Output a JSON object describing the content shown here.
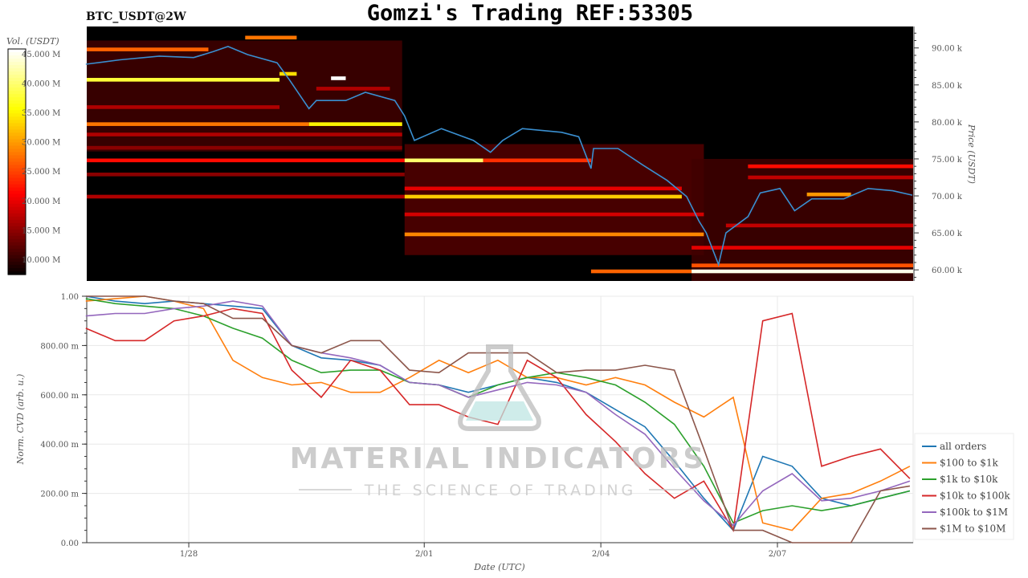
{
  "header": {
    "symbol": "BTC_USDT@2W",
    "title": "Gomzi's Trading REF:53305"
  },
  "watermark": {
    "brand": "MATERIAL INDICATORS",
    "tagline": "THE SCIENCE OF TRADING"
  },
  "chart_data": [
    {
      "type": "heatmap",
      "name_hint": "order book liquidity heatmap with price line",
      "x_range": [
        "01-26 06:24",
        "02-09 07:20"
      ],
      "y_range": [
        58.5,
        92.9
      ],
      "ylabel": "Price (USDT)",
      "y_ticks": [
        {
          "value": 60,
          "label": "60.00 k"
        },
        {
          "value": 65,
          "label": "65.00 k"
        },
        {
          "value": 70,
          "label": "70.00 k"
        },
        {
          "value": 75,
          "label": "75.00 k"
        },
        {
          "value": 80,
          "label": "80.00 k"
        },
        {
          "value": 85,
          "label": "85.00 k"
        },
        {
          "value": 90,
          "label": "90.00 k"
        }
      ],
      "colorbar": {
        "label": "Vol. (USDT)",
        "range": [
          7.4,
          45.8
        ],
        "colormap": "hot",
        "ticks": [
          {
            "value": 10,
            "label": "10.000 M"
          },
          {
            "value": 15,
            "label": "15.000 M"
          },
          {
            "value": 20,
            "label": "20.000 M"
          },
          {
            "value": 25,
            "label": "25.000 M"
          },
          {
            "value": 30,
            "label": "30.000 M"
          },
          {
            "value": 35,
            "label": "35.000 M"
          },
          {
            "value": 40,
            "label": "40.000 M"
          },
          {
            "value": 45,
            "label": "45.000 M"
          }
        ]
      },
      "regions": [
        {
          "pmin": 76,
          "pmax": 91,
          "from": "01-26 06:24",
          "to": "01-31 15:00",
          "vol": 11
        },
        {
          "pmin": 62,
          "pmax": 77,
          "from": "01-31 16:00",
          "to": "02-05 18:00",
          "vol": 12
        },
        {
          "pmin": 58.5,
          "pmax": 75,
          "from": "02-05 13:00",
          "to": "02-09 07:20",
          "vol": 11
        }
      ],
      "bands": [
        {
          "price": 91.4,
          "from": "01-28 23:00",
          "to": "01-29 20:00",
          "vol": 28
        },
        {
          "price": 89.8,
          "from": "01-26 06:24",
          "to": "01-28 08:00",
          "vol": 27
        },
        {
          "price": 86.5,
          "from": "01-29 13:00",
          "to": "01-29 20:00",
          "vol": 34
        },
        {
          "price": 85.7,
          "from": "01-26 06:24",
          "to": "01-29 13:00",
          "vol": 38
        },
        {
          "price": 85.9,
          "from": "01-30 10:00",
          "to": "01-30 16:00",
          "vol": 46
        },
        {
          "price": 84.5,
          "from": "01-30 04:00",
          "to": "01-31 10:00",
          "vol": 17
        },
        {
          "price": 82.0,
          "from": "01-26 06:24",
          "to": "01-29 13:00",
          "vol": 17
        },
        {
          "price": 79.7,
          "from": "01-26 06:24",
          "to": "01-30 01:00",
          "vol": 28
        },
        {
          "price": 79.7,
          "from": "01-30 01:00",
          "to": "01-31 15:00",
          "vol": 35
        },
        {
          "price": 78.3,
          "from": "01-26 06:24",
          "to": "01-31 15:00",
          "vol": 17
        },
        {
          "price": 76.5,
          "from": "01-26 06:24",
          "to": "01-31 15:00",
          "vol": 15
        },
        {
          "price": 74.8,
          "from": "01-26 06:24",
          "to": "01-31 16:00",
          "vol": 22
        },
        {
          "price": 74.8,
          "from": "01-31 16:00",
          "to": "02-02 00:00",
          "vol": 40
        },
        {
          "price": 74.8,
          "from": "02-02 00:00",
          "to": "02-03 20:00",
          "vol": 24
        },
        {
          "price": 74.0,
          "from": "02-06 12:00",
          "to": "02-09 07:20",
          "vol": 22
        },
        {
          "price": 72.9,
          "from": "01-26 06:24",
          "to": "01-31 16:00",
          "vol": 15
        },
        {
          "price": 72.5,
          "from": "02-06 12:00",
          "to": "02-09 07:20",
          "vol": 18
        },
        {
          "price": 71.0,
          "from": "01-31 16:00",
          "to": "02-05 09:00",
          "vol": 20
        },
        {
          "price": 70.2,
          "from": "02-07 12:00",
          "to": "02-08 06:00",
          "vol": 30
        },
        {
          "price": 69.9,
          "from": "01-26 06:24",
          "to": "01-31 16:00",
          "vol": 17
        },
        {
          "price": 69.9,
          "from": "01-31 16:00",
          "to": "02-05 09:00",
          "vol": 33
        },
        {
          "price": 67.5,
          "from": "01-31 16:00",
          "to": "02-05 18:00",
          "vol": 19
        },
        {
          "price": 66.0,
          "from": "02-06 03:00",
          "to": "02-09 07:20",
          "vol": 18
        },
        {
          "price": 64.8,
          "from": "01-31 16:00",
          "to": "02-05 18:00",
          "vol": 29
        },
        {
          "price": 63.0,
          "from": "02-05 13:00",
          "to": "02-09 07:20",
          "vol": 20
        },
        {
          "price": 60.6,
          "from": "02-05 13:00",
          "to": "02-09 07:20",
          "vol": 26
        },
        {
          "price": 59.8,
          "from": "02-03 20:00",
          "to": "02-05 13:00",
          "vol": 27
        },
        {
          "price": 59.8,
          "from": "02-05 13:00",
          "to": "02-09 07:20",
          "vol": 45
        }
      ],
      "price_line": {
        "color": "#3a8fd0",
        "points": [
          [
            "01-26 06:00",
            87.8
          ],
          [
            "01-26 20:00",
            88.4
          ],
          [
            "01-27 12:00",
            88.9
          ],
          [
            "01-28 02:00",
            88.7
          ],
          [
            "01-28 10:00",
            89.5
          ],
          [
            "01-28 16:00",
            90.2
          ],
          [
            "01-29 00:00",
            89.1
          ],
          [
            "01-29 12:00",
            88.0
          ],
          [
            "01-29 17:00",
            85.7
          ],
          [
            "01-30 01:00",
            81.8
          ],
          [
            "01-30 04:00",
            82.9
          ],
          [
            "01-30 16:00",
            82.9
          ],
          [
            "01-31 00:00",
            84.0
          ],
          [
            "01-31 12:00",
            82.9
          ],
          [
            "01-31 16:00",
            80.8
          ],
          [
            "01-31 20:00",
            77.5
          ],
          [
            "02-01 07:00",
            79.1
          ],
          [
            "02-01 20:00",
            77.5
          ],
          [
            "02-02 03:00",
            75.9
          ],
          [
            "02-02 08:00",
            77.5
          ],
          [
            "02-02 16:00",
            79.1
          ],
          [
            "02-03 08:00",
            78.6
          ],
          [
            "02-03 15:00",
            78.0
          ],
          [
            "02-03 20:00",
            73.7
          ],
          [
            "02-03 21:00",
            76.4
          ],
          [
            "02-04 07:00",
            76.4
          ],
          [
            "02-04 17:00",
            74.2
          ],
          [
            "02-05 03:00",
            72.1
          ],
          [
            "02-05 11:00",
            69.9
          ],
          [
            "02-05 16:00",
            66.6
          ],
          [
            "02-05 19:00",
            65.0
          ],
          [
            "02-06 00:00",
            60.7
          ],
          [
            "02-06 03:00",
            65.0
          ],
          [
            "02-06 12:00",
            67.2
          ],
          [
            "02-06 17:00",
            70.4
          ],
          [
            "02-07 01:00",
            71.0
          ],
          [
            "02-07 07:00",
            68.0
          ],
          [
            "02-07 14:00",
            69.6
          ],
          [
            "02-08 03:00",
            69.6
          ],
          [
            "02-08 13:00",
            71.0
          ],
          [
            "02-08 23:00",
            70.7
          ],
          [
            "02-09 07:00",
            70.1
          ]
        ]
      }
    },
    {
      "type": "line",
      "x_range": [
        "01-26 06:24",
        "02-09 07:20"
      ],
      "ylim": [
        0,
        1
      ],
      "xlabel": "Date (UTC)",
      "ylabel": "Norm. CVD (arb. u.)",
      "grid": true,
      "legend_position": "right",
      "x_ticks": [
        {
          "value": "01-28 00:00",
          "label": "1/28"
        },
        {
          "value": "02-01 00:00",
          "label": "2/01"
        },
        {
          "value": "02-04 00:00",
          "label": "2/04"
        },
        {
          "value": "02-07 00:00",
          "label": "2/07"
        }
      ],
      "y_ticks": [
        {
          "value": 0,
          "label": "0.00"
        },
        {
          "value": 0.2,
          "label": "200.00 m"
        },
        {
          "value": 0.4,
          "label": "400.00 m"
        },
        {
          "value": 0.6,
          "label": "600.00 m"
        },
        {
          "value": 0.8,
          "label": "800.00 m"
        },
        {
          "value": 1.0,
          "label": "1.00"
        }
      ],
      "x": [
        "01-26 06:00",
        "01-26 18:00",
        "01-27 06:00",
        "01-27 18:00",
        "01-28 06:00",
        "01-28 18:00",
        "01-29 06:00",
        "01-29 18:00",
        "01-30 06:00",
        "01-30 18:00",
        "01-31 06:00",
        "01-31 18:00",
        "02-01 06:00",
        "02-01 18:00",
        "02-02 06:00",
        "02-02 18:00",
        "02-03 06:00",
        "02-03 18:00",
        "02-04 06:00",
        "02-04 18:00",
        "02-05 06:00",
        "02-05 18:00",
        "02-06 06:00",
        "02-06 18:00",
        "02-07 06:00",
        "02-07 18:00",
        "02-08 06:00",
        "02-08 18:00",
        "02-09 06:00"
      ],
      "series": [
        {
          "name": "all orders",
          "color": "#1f77b4",
          "values": [
            1.0,
            0.98,
            0.97,
            0.98,
            0.97,
            0.96,
            0.95,
            0.8,
            0.75,
            0.74,
            0.72,
            0.65,
            0.64,
            0.61,
            0.64,
            0.67,
            0.65,
            0.61,
            0.54,
            0.47,
            0.33,
            0.18,
            0.05,
            0.35,
            0.31,
            0.18,
            0.15,
            0.18,
            0.21
          ]
        },
        {
          "name": "$100 to $1k",
          "color": "#ff7f0e",
          "values": [
            0.98,
            0.99,
            1.0,
            0.98,
            0.95,
            0.74,
            0.67,
            0.64,
            0.65,
            0.61,
            0.61,
            0.67,
            0.74,
            0.69,
            0.74,
            0.67,
            0.67,
            0.64,
            0.67,
            0.64,
            0.57,
            0.51,
            0.59,
            0.08,
            0.05,
            0.18,
            0.2,
            0.25,
            0.31
          ]
        },
        {
          "name": "$1k to $10k",
          "color": "#2ca02c",
          "values": [
            0.99,
            0.97,
            0.96,
            0.95,
            0.92,
            0.87,
            0.83,
            0.74,
            0.69,
            0.7,
            0.7,
            0.65,
            0.64,
            0.59,
            0.64,
            0.67,
            0.69,
            0.67,
            0.64,
            0.57,
            0.48,
            0.31,
            0.08,
            0.13,
            0.15,
            0.13,
            0.15,
            0.18,
            0.21
          ]
        },
        {
          "name": "$10k to $100k",
          "color": "#d62728",
          "values": [
            0.87,
            0.82,
            0.82,
            0.9,
            0.92,
            0.95,
            0.93,
            0.7,
            0.59,
            0.74,
            0.7,
            0.56,
            0.56,
            0.51,
            0.48,
            0.74,
            0.67,
            0.52,
            0.41,
            0.28,
            0.18,
            0.25,
            0.05,
            0.9,
            0.93,
            0.31,
            0.35,
            0.38,
            0.26
          ]
        },
        {
          "name": "$100k to $1M",
          "color": "#9467bd",
          "values": [
            0.92,
            0.93,
            0.93,
            0.95,
            0.96,
            0.98,
            0.96,
            0.8,
            0.77,
            0.75,
            0.72,
            0.65,
            0.64,
            0.59,
            0.62,
            0.65,
            0.64,
            0.61,
            0.52,
            0.44,
            0.3,
            0.17,
            0.07,
            0.21,
            0.28,
            0.17,
            0.18,
            0.21,
            0.25
          ]
        },
        {
          "name": "$1M to $10M",
          "color": "#8c564b",
          "values": [
            1.0,
            1.0,
            1.0,
            0.98,
            0.97,
            0.91,
            0.91,
            0.8,
            0.77,
            0.82,
            0.82,
            0.7,
            0.69,
            0.77,
            0.77,
            0.77,
            0.69,
            0.7,
            0.7,
            0.72,
            0.7,
            0.38,
            0.05,
            0.05,
            0.0,
            0.0,
            0.0,
            0.21,
            0.23
          ]
        }
      ]
    }
  ]
}
